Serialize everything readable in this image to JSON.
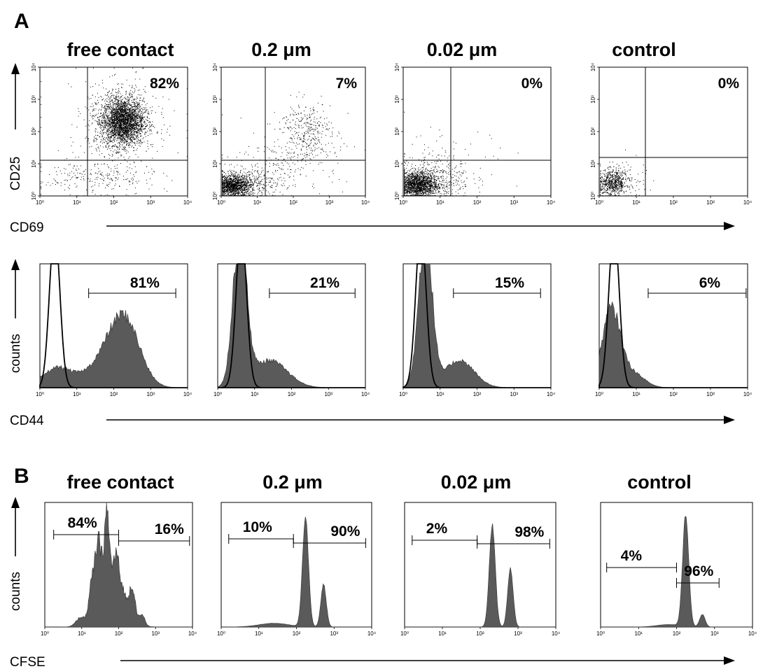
{
  "panel_labels": [
    "A",
    "B"
  ],
  "conditions": [
    "free contact",
    "0.2 μm",
    "0.02 μm",
    "control"
  ],
  "axis_labels": {
    "cd25": "CD25",
    "cd69": "CD69",
    "counts": "counts",
    "cd44": "CD44",
    "cfse": "CFSE"
  },
  "tick_labels": [
    "10⁰",
    "10¹",
    "10²",
    "10³",
    "10⁴"
  ],
  "chart_data": [
    {
      "type": "scatter",
      "panel": "A",
      "row": "CD69 vs CD25",
      "x_axis": "CD69",
      "y_axis": "CD25",
      "scale": "log",
      "xlim": [
        1,
        10000
      ],
      "ylim": [
        1,
        10000
      ],
      "series": [
        {
          "name": "free contact",
          "gate_percent": "82%"
        },
        {
          "name": "0.2 μm",
          "gate_percent": "7%"
        },
        {
          "name": "0.02 μm",
          "gate_percent": "0%"
        },
        {
          "name": "control",
          "gate_percent": "0%"
        }
      ]
    },
    {
      "type": "area",
      "panel": "A",
      "row": "CD44 histograms",
      "x_axis": "CD44",
      "y_axis": "counts",
      "scale": "log",
      "xlim": [
        1,
        10000
      ],
      "series": [
        {
          "name": "free contact",
          "gate_percent": "81%"
        },
        {
          "name": "0.2 μm",
          "gate_percent": "21%"
        },
        {
          "name": "0.02 μm",
          "gate_percent": "15%"
        },
        {
          "name": "control",
          "gate_percent": "6%"
        }
      ]
    },
    {
      "type": "area",
      "panel": "B",
      "row": "CFSE histograms",
      "x_axis": "CFSE",
      "y_axis": "counts",
      "scale": "log",
      "xlim": [
        1,
        10000
      ],
      "series": [
        {
          "name": "free contact",
          "gate_left_percent": "84%",
          "gate_right_percent": "16%"
        },
        {
          "name": "0.2 μm",
          "gate_left_percent": "10%",
          "gate_right_percent": "90%"
        },
        {
          "name": "0.02 μm",
          "gate_left_percent": "2%",
          "gate_right_percent": "98%"
        },
        {
          "name": "control",
          "gate_left_percent": "4%",
          "gate_right_percent": "96%"
        }
      ]
    }
  ]
}
